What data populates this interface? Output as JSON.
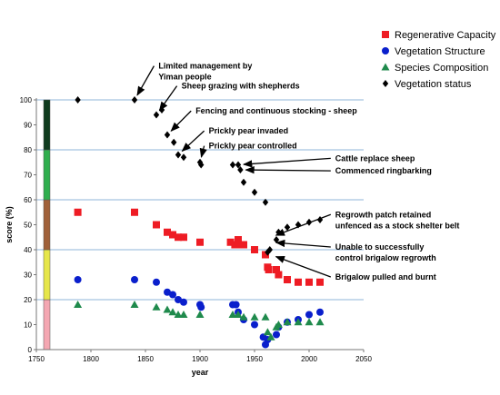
{
  "chart_data": {
    "type": "scatter",
    "xlabel": "year",
    "ylabel": "score  (%)",
    "xlim": [
      1750,
      2050
    ],
    "ylim": [
      0,
      100
    ],
    "xticks": [
      1750,
      1800,
      1850,
      1900,
      1950,
      2000,
      2050
    ],
    "yticks": [
      0,
      10,
      20,
      30,
      40,
      50,
      60,
      70,
      80,
      90,
      100
    ],
    "gridlines_y": [
      20,
      40,
      60,
      80,
      100
    ],
    "legend_position": "top-right",
    "condition_bar": [
      {
        "from": 0,
        "to": 20,
        "color": "#f4a7b2"
      },
      {
        "from": 20,
        "to": 40,
        "color": "#e6e64a"
      },
      {
        "from": 40,
        "to": 60,
        "color": "#a0613a"
      },
      {
        "from": 60,
        "to": 80,
        "color": "#2fae4e"
      },
      {
        "from": 80,
        "to": 100,
        "color": "#0f3b1e"
      }
    ],
    "series": [
      {
        "name": "Regenerative Capacity",
        "marker": "square",
        "color": "#ee1c24",
        "points": [
          [
            1788,
            55
          ],
          [
            1840,
            55
          ],
          [
            1860,
            50
          ],
          [
            1870,
            47
          ],
          [
            1875,
            46
          ],
          [
            1880,
            45
          ],
          [
            1885,
            45
          ],
          [
            1900,
            43
          ],
          [
            1928,
            43
          ],
          [
            1932,
            42
          ],
          [
            1935,
            44
          ],
          [
            1937,
            42
          ],
          [
            1940,
            42
          ],
          [
            1950,
            40
          ],
          [
            1960,
            38
          ],
          [
            1962,
            33
          ],
          [
            1963,
            32
          ],
          [
            1970,
            32
          ],
          [
            1972,
            30
          ],
          [
            1980,
            28
          ],
          [
            1990,
            27
          ],
          [
            2000,
            27
          ],
          [
            2010,
            27
          ]
        ]
      },
      {
        "name": "Vegetation Structure",
        "marker": "circle",
        "color": "#0a1fcc",
        "points": [
          [
            1788,
            28
          ],
          [
            1840,
            28
          ],
          [
            1860,
            27
          ],
          [
            1870,
            23
          ],
          [
            1875,
            22
          ],
          [
            1880,
            20
          ],
          [
            1885,
            19
          ],
          [
            1900,
            18
          ],
          [
            1901,
            17
          ],
          [
            1930,
            18
          ],
          [
            1933,
            18
          ],
          [
            1935,
            15
          ],
          [
            1940,
            12
          ],
          [
            1950,
            10
          ],
          [
            1958,
            5
          ],
          [
            1960,
            2
          ],
          [
            1962,
            4
          ],
          [
            1970,
            6
          ],
          [
            1972,
            9
          ],
          [
            1980,
            11
          ],
          [
            1990,
            12
          ],
          [
            2000,
            14
          ],
          [
            2010,
            15
          ]
        ]
      },
      {
        "name": "Species Composition",
        "marker": "triangle",
        "color": "#1f8a4c",
        "points": [
          [
            1788,
            18
          ],
          [
            1840,
            18
          ],
          [
            1860,
            17
          ],
          [
            1870,
            16
          ],
          [
            1875,
            15
          ],
          [
            1880,
            14
          ],
          [
            1885,
            14
          ],
          [
            1900,
            14
          ],
          [
            1930,
            14
          ],
          [
            1935,
            14
          ],
          [
            1940,
            13
          ],
          [
            1950,
            13
          ],
          [
            1960,
            13
          ],
          [
            1962,
            7
          ],
          [
            1965,
            5
          ],
          [
            1970,
            9
          ],
          [
            1972,
            10
          ],
          [
            1980,
            11
          ],
          [
            1990,
            11
          ],
          [
            2000,
            11
          ],
          [
            2010,
            11
          ]
        ]
      },
      {
        "name": "Vegetation status",
        "marker": "diamond",
        "color": "#000000",
        "points": [
          [
            1788,
            100
          ],
          [
            1840,
            100
          ],
          [
            1860,
            94
          ],
          [
            1865,
            96
          ],
          [
            1870,
            86
          ],
          [
            1876,
            83
          ],
          [
            1880,
            78
          ],
          [
            1885,
            77
          ],
          [
            1900,
            75
          ],
          [
            1901,
            74
          ],
          [
            1930,
            74
          ],
          [
            1935,
            74
          ],
          [
            1937,
            72
          ],
          [
            1940,
            67
          ],
          [
            1950,
            63
          ],
          [
            1960,
            59
          ],
          [
            1962,
            39
          ],
          [
            1964,
            40
          ],
          [
            1970,
            44
          ],
          [
            1972,
            47
          ],
          [
            1980,
            49
          ],
          [
            1990,
            50
          ],
          [
            2000,
            51
          ],
          [
            2010,
            52
          ]
        ]
      }
    ],
    "annotations": [
      {
        "lines": [
          "Limited management by",
          "Yiman people"
        ],
        "tx": 1862,
        "ty": 112.5,
        "ax": 1840,
        "ay": 100
      },
      {
        "lines": [
          "Sheep grazing with shepherds"
        ],
        "tx": 1883,
        "ty": 104.5,
        "ax": 1860,
        "ay": 94
      },
      {
        "lines": [
          "Fencing and continuous stocking - sheep"
        ],
        "tx": 1896,
        "ty": 94.5,
        "ax": 1870,
        "ay": 86
      },
      {
        "lines": [
          "Prickly pear invaded"
        ],
        "tx": 1908,
        "ty": 86.5,
        "ax": 1880,
        "ay": 78
      },
      {
        "lines": [
          "Prickly pear controlled"
        ],
        "tx": 1908,
        "ty": 80.5,
        "ax": 1900,
        "ay": 75
      },
      {
        "lines": [
          "Cattle replace sheep"
        ],
        "tx": 2024,
        "ty": 75.5,
        "ax": 1935,
        "ay": 74
      },
      {
        "lines": [
          "Commenced ringbarking"
        ],
        "tx": 2024,
        "ty": 70.5,
        "ax": 1937,
        "ay": 72
      },
      {
        "lines": [
          "Regrowth patch retained",
          "unfenced as a stock shelter belt"
        ],
        "tx": 2024,
        "ty": 53,
        "ax": 1965,
        "ay": 45
      },
      {
        "lines": [
          "Unable to successfully",
          "control brigalow regrowth"
        ],
        "tx": 2024,
        "ty": 40,
        "ax": 1965,
        "ay": 43
      },
      {
        "lines": [
          "Brigalow pulled and burnt"
        ],
        "tx": 2024,
        "ty": 28,
        "ax": 1965,
        "ay": 38
      }
    ]
  }
}
